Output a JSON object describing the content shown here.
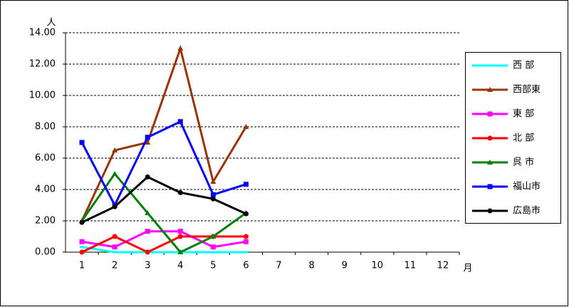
{
  "chart_data": {
    "type": "line",
    "y_label": "人",
    "x_label": "月",
    "categories": [
      "1",
      "2",
      "3",
      "4",
      "5",
      "6",
      "7",
      "8",
      "9",
      "10",
      "11",
      "12"
    ],
    "ylim": [
      0,
      14
    ],
    "yticks": [
      {
        "value": 0,
        "label": "0.00"
      },
      {
        "value": 2,
        "label": "2.00"
      },
      {
        "value": 4,
        "label": "4.00"
      },
      {
        "value": 6,
        "label": "6.00"
      },
      {
        "value": 8,
        "label": "8.00"
      },
      {
        "value": 10,
        "label": "10.00"
      },
      {
        "value": 12,
        "label": "12.00"
      },
      {
        "value": 14,
        "label": "14.00"
      }
    ],
    "grid": true,
    "legend": "right",
    "series": [
      {
        "name": "西 部",
        "color": "#00ffff",
        "marker": "dash",
        "values": [
          0.33,
          0,
          0,
          0,
          0,
          0,
          null,
          null,
          null,
          null,
          null,
          null
        ]
      },
      {
        "name": "西部東",
        "color": "#993300",
        "marker": "triangle",
        "values": [
          2,
          6.5,
          7,
          13,
          4.5,
          8,
          null,
          null,
          null,
          null,
          null,
          null
        ]
      },
      {
        "name": "東 部",
        "color": "#ff00ff",
        "marker": "square",
        "values": [
          0.67,
          0.33,
          1.33,
          1.33,
          0.33,
          0.67,
          null,
          null,
          null,
          null,
          null,
          null
        ]
      },
      {
        "name": "北 部",
        "color": "#ff0000",
        "marker": "circle",
        "values": [
          0,
          1,
          0,
          1,
          1,
          1,
          null,
          null,
          null,
          null,
          null,
          null
        ]
      },
      {
        "name": "呉 市",
        "color": "#008000",
        "marker": "triangle",
        "values": [
          2,
          5,
          2.5,
          0,
          1,
          2.5,
          null,
          null,
          null,
          null,
          null,
          null
        ]
      },
      {
        "name": "福山市",
        "color": "#0000ff",
        "marker": "square",
        "values": [
          7,
          3,
          7.33,
          8.33,
          3.67,
          4.33,
          null,
          null,
          null,
          null,
          null,
          null
        ]
      },
      {
        "name": "広島市",
        "color": "#000000",
        "marker": "circle",
        "values": [
          1.9,
          2.9,
          4.8,
          3.8,
          3.4,
          2.45,
          null,
          null,
          null,
          null,
          null,
          null
        ]
      }
    ]
  }
}
